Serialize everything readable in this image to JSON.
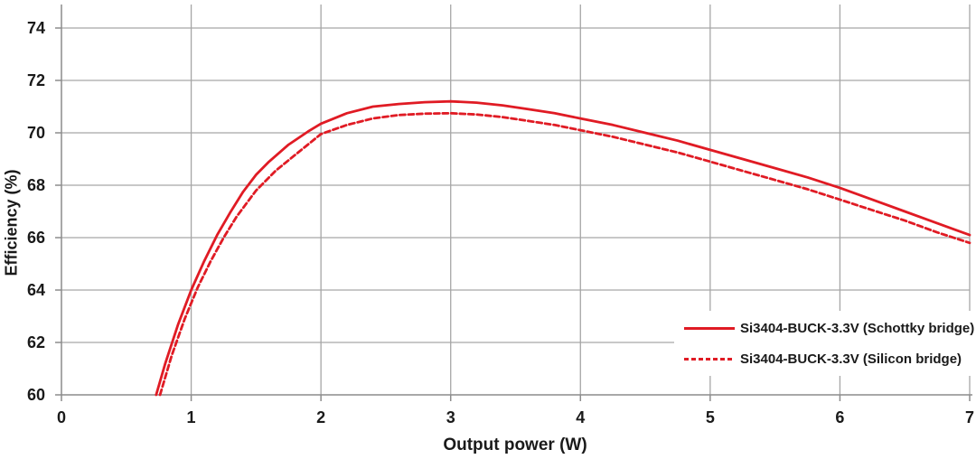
{
  "chart": {
    "y_axis_title": "Efficiency (%)",
    "x_axis_title": "Output power (W)",
    "colors": {
      "series_red": "#e01b24",
      "gridline": "#a6a6a6",
      "axis": "#8c8c8c",
      "text": "#1a1a1a",
      "background": "#ffffff"
    }
  },
  "chart_data": {
    "type": "line",
    "title": "",
    "xlabel": "Output power (W)",
    "ylabel": "Efficiency (%)",
    "xlim": [
      0,
      7
    ],
    "ylim": [
      60,
      74
    ],
    "x_ticks": [
      0,
      1,
      2,
      3,
      4,
      5,
      6,
      7
    ],
    "y_ticks": [
      60,
      62,
      64,
      66,
      68,
      70,
      72,
      74
    ],
    "grid": true,
    "legend_position": "inside-bottom-right",
    "series": [
      {
        "name": "Si3404-BUCK-3.3V (Schottky bridge)",
        "line_style": "solid",
        "color": "#e01b24",
        "x": [
          0.73,
          0.8,
          0.9,
          1.0,
          1.1,
          1.2,
          1.3,
          1.4,
          1.5,
          1.6,
          1.75,
          1.9,
          2.0,
          2.2,
          2.4,
          2.6,
          2.8,
          3.0,
          3.2,
          3.4,
          3.6,
          3.8,
          4.0,
          4.25,
          4.5,
          4.75,
          5.0,
          5.25,
          5.5,
          5.75,
          6.0,
          6.25,
          6.5,
          6.75,
          7.0
        ],
        "y": [
          60.0,
          61.2,
          62.7,
          64.0,
          65.1,
          66.1,
          66.95,
          67.75,
          68.4,
          68.9,
          69.55,
          70.05,
          70.35,
          70.75,
          71.0,
          71.1,
          71.17,
          71.2,
          71.15,
          71.05,
          70.9,
          70.75,
          70.55,
          70.3,
          70.0,
          69.7,
          69.35,
          69.0,
          68.65,
          68.3,
          67.9,
          67.45,
          67.0,
          66.55,
          66.1
        ]
      },
      {
        "name": "Si3404-BUCK-3.3V (Silicon bridge)",
        "line_style": "dashed",
        "color": "#e01b24",
        "x": [
          0.76,
          0.85,
          0.95,
          1.05,
          1.15,
          1.25,
          1.35,
          1.5,
          1.65,
          1.8,
          2.0,
          2.2,
          2.4,
          2.6,
          2.8,
          3.0,
          3.2,
          3.4,
          3.6,
          3.8,
          4.0,
          4.25,
          4.5,
          4.75,
          5.0,
          5.25,
          5.5,
          5.75,
          6.0,
          6.25,
          6.5,
          6.75,
          7.0
        ],
        "y": [
          60.0,
          61.5,
          62.9,
          64.1,
          65.1,
          66.0,
          66.8,
          67.8,
          68.55,
          69.15,
          69.95,
          70.3,
          70.55,
          70.68,
          70.73,
          70.75,
          70.7,
          70.6,
          70.45,
          70.3,
          70.1,
          69.85,
          69.55,
          69.25,
          68.9,
          68.55,
          68.2,
          67.85,
          67.45,
          67.05,
          66.65,
          66.2,
          65.8
        ]
      }
    ]
  }
}
